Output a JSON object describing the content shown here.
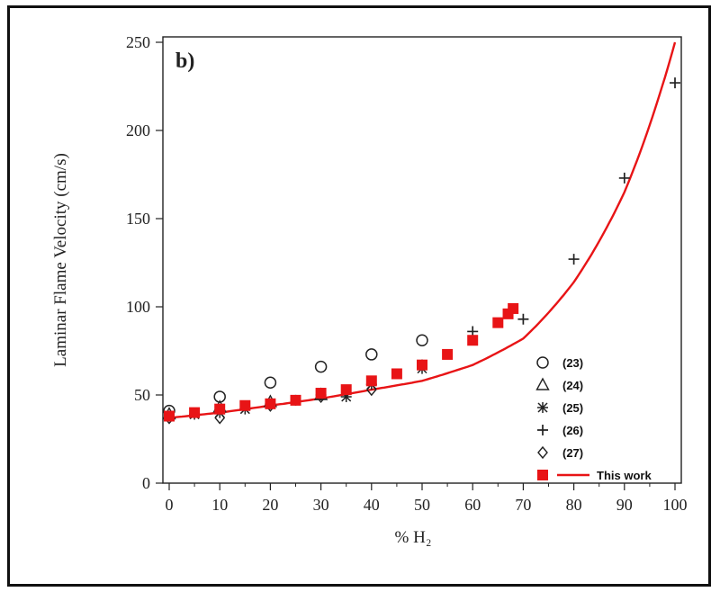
{
  "chart_data": {
    "type": "scatter",
    "panel_label": "b)",
    "xlabel": "% H₂",
    "ylabel": "Laminar Flame Velocity (cm/s)",
    "xlim": [
      0,
      100
    ],
    "ylim": [
      0,
      250
    ],
    "x_ticks": [
      "0",
      "10",
      "20",
      "30",
      "40",
      "50",
      "60",
      "70",
      "80",
      "90",
      "100"
    ],
    "y_ticks": [
      "0",
      "50",
      "100",
      "150",
      "200",
      "250"
    ],
    "grid": false,
    "legend_position": "bottom-right",
    "series": [
      {
        "name": "(23)",
        "marker": "circle-open",
        "color": "#222222",
        "x": [
          0,
          10,
          20,
          30,
          40,
          50
        ],
        "y": [
          41,
          49,
          57,
          66,
          73,
          81
        ]
      },
      {
        "name": "(24)",
        "marker": "triangle-open",
        "color": "#222222",
        "x": [
          0,
          10,
          20,
          30
        ],
        "y": [
          39,
          43,
          46,
          50
        ]
      },
      {
        "name": "(25)",
        "marker": "asterisk",
        "color": "#222222",
        "x": [
          0,
          5,
          10,
          15,
          20,
          25,
          30,
          35,
          40,
          50
        ],
        "y": [
          38,
          39,
          40,
          42,
          45,
          47,
          50,
          49,
          56,
          65
        ]
      },
      {
        "name": "(26)",
        "marker": "plus",
        "color": "#222222",
        "x": [
          50,
          60,
          70,
          80,
          90,
          100
        ],
        "y": [
          67,
          86,
          93,
          127,
          173,
          227
        ]
      },
      {
        "name": "(27)",
        "marker": "diamond-open",
        "color": "#222222",
        "x": [
          0,
          10,
          20,
          30,
          40
        ],
        "y": [
          37,
          37,
          44,
          49,
          53
        ]
      },
      {
        "name": "This work",
        "marker": "square-filled",
        "color": "#e81416",
        "x": [
          0,
          5,
          10,
          15,
          20,
          25,
          30,
          35,
          40,
          45,
          50,
          55,
          60,
          65,
          67,
          68
        ],
        "y": [
          38,
          40,
          42,
          44,
          45,
          47,
          51,
          53,
          58,
          62,
          67,
          73,
          81,
          91,
          96,
          99
        ]
      },
      {
        "name": "This work",
        "type": "line",
        "color": "#e81416",
        "x": [
          0,
          10,
          20,
          30,
          40,
          50,
          60,
          70,
          80,
          90,
          100
        ],
        "y": [
          37,
          40,
          44,
          48,
          53,
          58,
          67,
          82,
          114,
          165,
          250
        ]
      }
    ]
  }
}
